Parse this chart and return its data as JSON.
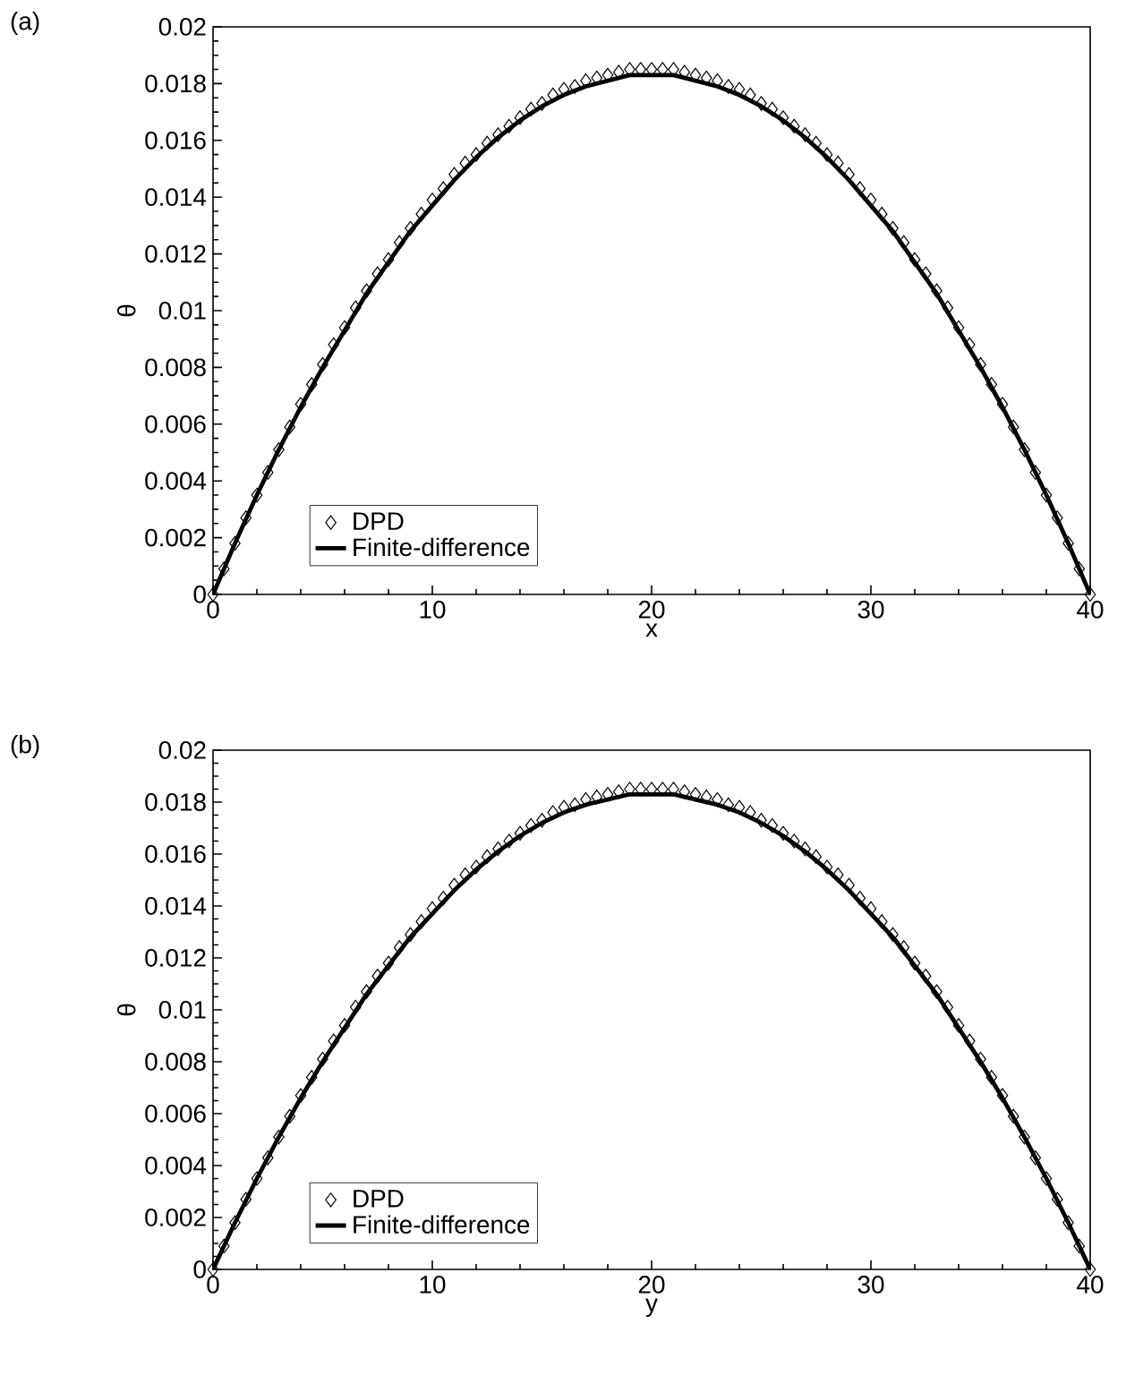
{
  "chart_data": [
    {
      "type": "line",
      "xlabel": "x",
      "ylabel": "θ",
      "annotations": [
        "(a)"
      ],
      "xlim": [
        0,
        40
      ],
      "ylim": [
        0,
        0.02
      ],
      "xticks": [
        0,
        10,
        20,
        30,
        40
      ],
      "yticks": [
        0,
        0.002,
        0.004,
        0.006,
        0.008,
        0.01,
        0.012,
        0.014,
        0.016,
        0.018,
        0.02
      ],
      "legend": "bottom left",
      "series": [
        {
          "name": "DPD",
          "type": "scatter",
          "marker": "diamond",
          "color": "#000000",
          "x": [
            0,
            0.5,
            1,
            1.5,
            2,
            2.5,
            3,
            3.5,
            4,
            4.5,
            5,
            5.5,
            6,
            6.5,
            7,
            7.5,
            8,
            8.5,
            9,
            9.5,
            10,
            10.5,
            11,
            11.5,
            12,
            12.5,
            13,
            13.5,
            14,
            14.5,
            15,
            15.5,
            16,
            16.5,
            17,
            17.5,
            18,
            18.5,
            19,
            19.5,
            20,
            20.5,
            21,
            21.5,
            22,
            22.5,
            23,
            23.5,
            24,
            24.5,
            25,
            25.5,
            26,
            26.5,
            27,
            27.5,
            28,
            28.5,
            29,
            29.5,
            30,
            30.5,
            31,
            31.5,
            32,
            32.5,
            33,
            33.5,
            34,
            34.5,
            35,
            35.5,
            36,
            36.5,
            37,
            37.5,
            38,
            38.5,
            39,
            39.5,
            40
          ],
          "values": [
            0,
            0.0009,
            0.0018,
            0.0027,
            0.0035,
            0.0043,
            0.0051,
            0.0059,
            0.0067,
            0.0074,
            0.0081,
            0.0088,
            0.0094,
            0.0101,
            0.0107,
            0.0113,
            0.0118,
            0.0124,
            0.0129,
            0.0134,
            0.0139,
            0.0143,
            0.0148,
            0.0152,
            0.0155,
            0.0159,
            0.0162,
            0.0165,
            0.0168,
            0.0171,
            0.0173,
            0.0176,
            0.0178,
            0.0179,
            0.0181,
            0.0182,
            0.0183,
            0.0184,
            0.0185,
            0.0185,
            0.0185,
            0.0185,
            0.0185,
            0.0184,
            0.0183,
            0.0182,
            0.0181,
            0.0179,
            0.0178,
            0.0176,
            0.0173,
            0.0171,
            0.0168,
            0.0165,
            0.0162,
            0.0159,
            0.0155,
            0.0152,
            0.0148,
            0.0143,
            0.0139,
            0.0134,
            0.0129,
            0.0124,
            0.0118,
            0.0113,
            0.0107,
            0.0101,
            0.0094,
            0.0088,
            0.0081,
            0.0074,
            0.0067,
            0.0059,
            0.0051,
            0.0043,
            0.0035,
            0.0027,
            0.0018,
            0.0009,
            0
          ]
        },
        {
          "name": "Finite-difference",
          "type": "line",
          "line_style": "solid",
          "color": "#000000",
          "x": [
            0,
            1,
            2,
            3,
            4,
            5,
            6,
            7,
            8,
            9,
            10,
            11,
            12,
            13,
            14,
            15,
            16,
            17,
            18,
            19,
            20,
            21,
            22,
            23,
            24,
            25,
            26,
            27,
            28,
            29,
            30,
            31,
            32,
            33,
            34,
            35,
            36,
            37,
            38,
            39,
            40
          ],
          "values": [
            0,
            0.0018,
            0.0035,
            0.0051,
            0.0066,
            0.008,
            0.0093,
            0.0106,
            0.0117,
            0.0128,
            0.0137,
            0.0146,
            0.0154,
            0.0161,
            0.0167,
            0.0172,
            0.0176,
            0.0179,
            0.0181,
            0.0183,
            0.0183,
            0.0183,
            0.0181,
            0.0179,
            0.0176,
            0.0172,
            0.0167,
            0.0161,
            0.0154,
            0.0146,
            0.0137,
            0.0128,
            0.0117,
            0.0106,
            0.0093,
            0.008,
            0.0066,
            0.0051,
            0.0035,
            0.0018,
            0
          ]
        }
      ]
    },
    {
      "type": "line",
      "xlabel": "y",
      "ylabel": "θ",
      "annotations": [
        "(b)"
      ],
      "xlim": [
        0,
        40
      ],
      "ylim": [
        0,
        0.02
      ],
      "xticks": [
        0,
        10,
        20,
        30,
        40
      ],
      "yticks": [
        0,
        0.002,
        0.004,
        0.006,
        0.008,
        0.01,
        0.012,
        0.014,
        0.016,
        0.018,
        0.02
      ],
      "legend": "bottom left",
      "series": [
        {
          "name": "DPD",
          "type": "scatter",
          "marker": "diamond",
          "color": "#000000",
          "x": [
            0,
            0.5,
            1,
            1.5,
            2,
            2.5,
            3,
            3.5,
            4,
            4.5,
            5,
            5.5,
            6,
            6.5,
            7,
            7.5,
            8,
            8.5,
            9,
            9.5,
            10,
            10.5,
            11,
            11.5,
            12,
            12.5,
            13,
            13.5,
            14,
            14.5,
            15,
            15.5,
            16,
            16.5,
            17,
            17.5,
            18,
            18.5,
            19,
            19.5,
            20,
            20.5,
            21,
            21.5,
            22,
            22.5,
            23,
            23.5,
            24,
            24.5,
            25,
            25.5,
            26,
            26.5,
            27,
            27.5,
            28,
            28.5,
            29,
            29.5,
            30,
            30.5,
            31,
            31.5,
            32,
            32.5,
            33,
            33.5,
            34,
            34.5,
            35,
            35.5,
            36,
            36.5,
            37,
            37.5,
            38,
            38.5,
            39,
            39.5,
            40
          ],
          "values": [
            0,
            0.0009,
            0.0018,
            0.0027,
            0.0035,
            0.0043,
            0.0051,
            0.0059,
            0.0067,
            0.0074,
            0.0081,
            0.0088,
            0.0094,
            0.0101,
            0.0107,
            0.0113,
            0.0118,
            0.0124,
            0.0129,
            0.0134,
            0.0139,
            0.0143,
            0.0148,
            0.0152,
            0.0155,
            0.0159,
            0.0162,
            0.0165,
            0.0168,
            0.0171,
            0.0173,
            0.0176,
            0.0178,
            0.0179,
            0.0181,
            0.0182,
            0.0183,
            0.0184,
            0.0185,
            0.0185,
            0.0185,
            0.0185,
            0.0185,
            0.0184,
            0.0183,
            0.0182,
            0.0181,
            0.0179,
            0.0178,
            0.0176,
            0.0173,
            0.0171,
            0.0168,
            0.0165,
            0.0162,
            0.0159,
            0.0155,
            0.0152,
            0.0148,
            0.0143,
            0.0139,
            0.0134,
            0.0129,
            0.0124,
            0.0118,
            0.0113,
            0.0107,
            0.0101,
            0.0094,
            0.0088,
            0.0081,
            0.0074,
            0.0067,
            0.0059,
            0.0051,
            0.0043,
            0.0035,
            0.0027,
            0.0018,
            0.0009,
            0
          ]
        },
        {
          "name": "Finite-difference",
          "type": "line",
          "line_style": "solid",
          "color": "#000000",
          "x": [
            0,
            1,
            2,
            3,
            4,
            5,
            6,
            7,
            8,
            9,
            10,
            11,
            12,
            13,
            14,
            15,
            16,
            17,
            18,
            19,
            20,
            21,
            22,
            23,
            24,
            25,
            26,
            27,
            28,
            29,
            30,
            31,
            32,
            33,
            34,
            35,
            36,
            37,
            38,
            39,
            40
          ],
          "values": [
            0,
            0.0018,
            0.0035,
            0.0051,
            0.0066,
            0.008,
            0.0093,
            0.0106,
            0.0117,
            0.0128,
            0.0137,
            0.0146,
            0.0154,
            0.0161,
            0.0167,
            0.0172,
            0.0176,
            0.0179,
            0.0181,
            0.0183,
            0.0183,
            0.0183,
            0.0181,
            0.0179,
            0.0176,
            0.0172,
            0.0167,
            0.0161,
            0.0154,
            0.0146,
            0.0137,
            0.0128,
            0.0117,
            0.0106,
            0.0093,
            0.008,
            0.0066,
            0.0051,
            0.0035,
            0.0018,
            0
          ]
        }
      ]
    }
  ]
}
